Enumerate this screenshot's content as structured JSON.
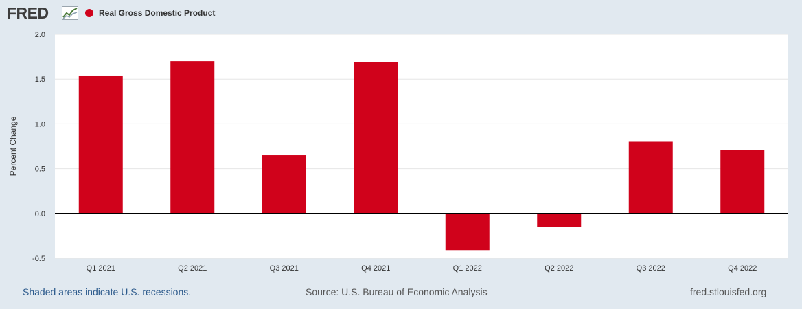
{
  "header": {
    "logo_text": "FRED",
    "legend_label": "Real Gross Domestic Product",
    "series_color": "#d0021b"
  },
  "chart_data": {
    "type": "bar",
    "title": "Real Gross Domestic Product",
    "xlabel": "",
    "ylabel": "Percent Change",
    "categories": [
      "Q1 2021",
      "Q2 2021",
      "Q3 2021",
      "Q4 2021",
      "Q1 2022",
      "Q2 2022",
      "Q3 2022",
      "Q4 2022"
    ],
    "values": [
      1.54,
      1.7,
      0.65,
      1.69,
      -0.41,
      -0.15,
      0.8,
      0.71
    ],
    "ylim": [
      -0.5,
      2.0
    ],
    "yticks": [
      -0.5,
      0.0,
      0.5,
      1.0,
      1.5,
      2.0
    ],
    "ytick_labels": [
      "-0.5",
      "0.0",
      "0.5",
      "1.0",
      "1.5",
      "2.0"
    ],
    "grid": true,
    "legend": "top-left",
    "bar_color": "#d0021b"
  },
  "footer": {
    "recessions_note": "Shaded areas indicate U.S. recessions.",
    "source": "Source: U.S. Bureau of Economic Analysis",
    "site": "fred.stlouisfed.org"
  }
}
